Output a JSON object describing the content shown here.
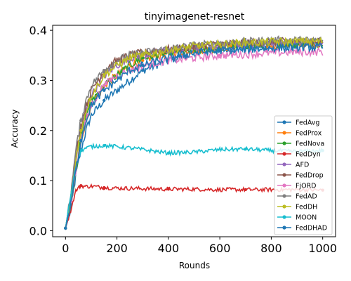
{
  "chart_data": {
    "type": "line",
    "title": "tinyimagenet-resnet",
    "xlabel": "Rounds",
    "ylabel": "Accuracy",
    "xlim": [
      -50,
      1050
    ],
    "ylim": [
      -0.012,
      0.41
    ],
    "xticks": [
      0,
      200,
      400,
      600,
      800,
      1000
    ],
    "yticks": [
      0.0,
      0.1,
      0.2,
      0.3,
      0.4
    ],
    "ytick_labels": [
      "0.0",
      "0.1",
      "0.2",
      "0.3",
      "0.4"
    ],
    "grid": false,
    "legend_position": "lower-right",
    "series": [
      {
        "name": "FedAvg",
        "color": "#1f77b4",
        "marker": "point",
        "x": [
          0,
          20,
          40,
          60,
          80,
          100,
          150,
          200,
          250,
          300,
          400,
          500,
          600,
          700,
          800,
          900,
          1000
        ],
        "y": [
          0.005,
          0.04,
          0.11,
          0.16,
          0.2,
          0.23,
          0.26,
          0.28,
          0.3,
          0.32,
          0.34,
          0.355,
          0.36,
          0.365,
          0.365,
          0.37,
          0.37
        ]
      },
      {
        "name": "FedProx",
        "color": "#ff7f0e",
        "marker": "circle",
        "x": [
          0,
          20,
          40,
          60,
          80,
          100,
          150,
          200,
          250,
          300,
          400,
          500,
          600,
          700,
          800,
          900,
          1000
        ],
        "y": [
          0.005,
          0.05,
          0.12,
          0.18,
          0.22,
          0.25,
          0.29,
          0.31,
          0.33,
          0.34,
          0.355,
          0.36,
          0.365,
          0.37,
          0.37,
          0.372,
          0.372
        ]
      },
      {
        "name": "FedNova",
        "color": "#2ca02c",
        "marker": "triangle-down",
        "x": [
          0,
          20,
          40,
          60,
          80,
          100,
          150,
          200,
          250,
          300,
          400,
          500,
          600,
          700,
          800,
          900,
          1000
        ],
        "y": [
          0.005,
          0.05,
          0.12,
          0.18,
          0.23,
          0.26,
          0.29,
          0.31,
          0.33,
          0.345,
          0.355,
          0.36,
          0.365,
          0.37,
          0.372,
          0.374,
          0.374
        ]
      },
      {
        "name": "FedDyn",
        "color": "#d62728",
        "marker": "square",
        "x": [
          0,
          20,
          40,
          60,
          80,
          100,
          150,
          200,
          300,
          400,
          500,
          600,
          700,
          800,
          900,
          1000
        ],
        "y": [
          0.005,
          0.04,
          0.08,
          0.09,
          0.088,
          0.089,
          0.086,
          0.085,
          0.084,
          0.083,
          0.083,
          0.082,
          0.082,
          0.082,
          0.082,
          0.081
        ]
      },
      {
        "name": "AFD",
        "color": "#9467bd",
        "marker": "pentagon",
        "x": [
          0,
          20,
          40,
          60,
          80,
          100,
          150,
          200,
          250,
          300,
          400,
          500,
          600,
          700,
          800,
          900,
          1000
        ],
        "y": [
          0.005,
          0.06,
          0.14,
          0.2,
          0.24,
          0.27,
          0.31,
          0.33,
          0.345,
          0.35,
          0.36,
          0.365,
          0.37,
          0.372,
          0.375,
          0.376,
          0.376
        ]
      },
      {
        "name": "FedDrop",
        "color": "#8c564b",
        "marker": "plus",
        "x": [
          0,
          20,
          40,
          60,
          80,
          100,
          150,
          200,
          250,
          300,
          400,
          500,
          600,
          700,
          800,
          900,
          1000
        ],
        "y": [
          0.005,
          0.07,
          0.15,
          0.21,
          0.25,
          0.28,
          0.32,
          0.34,
          0.35,
          0.355,
          0.362,
          0.367,
          0.372,
          0.375,
          0.377,
          0.378,
          0.378
        ]
      },
      {
        "name": "FjORD",
        "color": "#e377c2",
        "marker": "star",
        "x": [
          0,
          20,
          40,
          60,
          80,
          100,
          150,
          200,
          250,
          300,
          400,
          500,
          600,
          700,
          800,
          900,
          1000
        ],
        "y": [
          0.005,
          0.05,
          0.12,
          0.18,
          0.22,
          0.25,
          0.29,
          0.31,
          0.32,
          0.33,
          0.34,
          0.345,
          0.35,
          0.352,
          0.355,
          0.357,
          0.357
        ]
      },
      {
        "name": "FedAD",
        "color": "#7f7f7f",
        "marker": "x",
        "x": [
          0,
          20,
          40,
          60,
          80,
          100,
          150,
          200,
          250,
          300,
          400,
          500,
          600,
          700,
          800,
          900,
          1000
        ],
        "y": [
          0.005,
          0.07,
          0.16,
          0.22,
          0.26,
          0.29,
          0.32,
          0.34,
          0.35,
          0.355,
          0.363,
          0.37,
          0.374,
          0.377,
          0.38,
          0.38,
          0.38
        ]
      },
      {
        "name": "FedDH",
        "color": "#bcbd22",
        "marker": "triangle-left",
        "x": [
          0,
          20,
          40,
          60,
          80,
          100,
          150,
          200,
          250,
          300,
          400,
          500,
          600,
          700,
          800,
          900,
          1000
        ],
        "y": [
          0.005,
          0.06,
          0.14,
          0.2,
          0.24,
          0.27,
          0.31,
          0.33,
          0.345,
          0.35,
          0.36,
          0.368,
          0.372,
          0.375,
          0.377,
          0.378,
          0.378
        ]
      },
      {
        "name": "MOON",
        "color": "#17becf",
        "marker": "circle",
        "x": [
          0,
          20,
          40,
          60,
          80,
          100,
          150,
          200,
          300,
          400,
          500,
          600,
          700,
          800,
          900,
          1000
        ],
        "y": [
          0.005,
          0.07,
          0.13,
          0.16,
          0.165,
          0.168,
          0.17,
          0.168,
          0.162,
          0.155,
          0.157,
          0.162,
          0.163,
          0.16,
          0.158,
          0.16
        ]
      },
      {
        "name": "FedDHAD",
        "color": "#1f77b4",
        "marker": "triangle-right",
        "x": [
          0,
          20,
          40,
          60,
          80,
          100,
          150,
          200,
          250,
          300,
          400,
          500,
          600,
          700,
          800,
          900,
          1000
        ],
        "y": [
          0.005,
          0.05,
          0.12,
          0.18,
          0.22,
          0.25,
          0.28,
          0.3,
          0.32,
          0.33,
          0.345,
          0.355,
          0.36,
          0.362,
          0.365,
          0.366,
          0.366
        ]
      }
    ]
  }
}
